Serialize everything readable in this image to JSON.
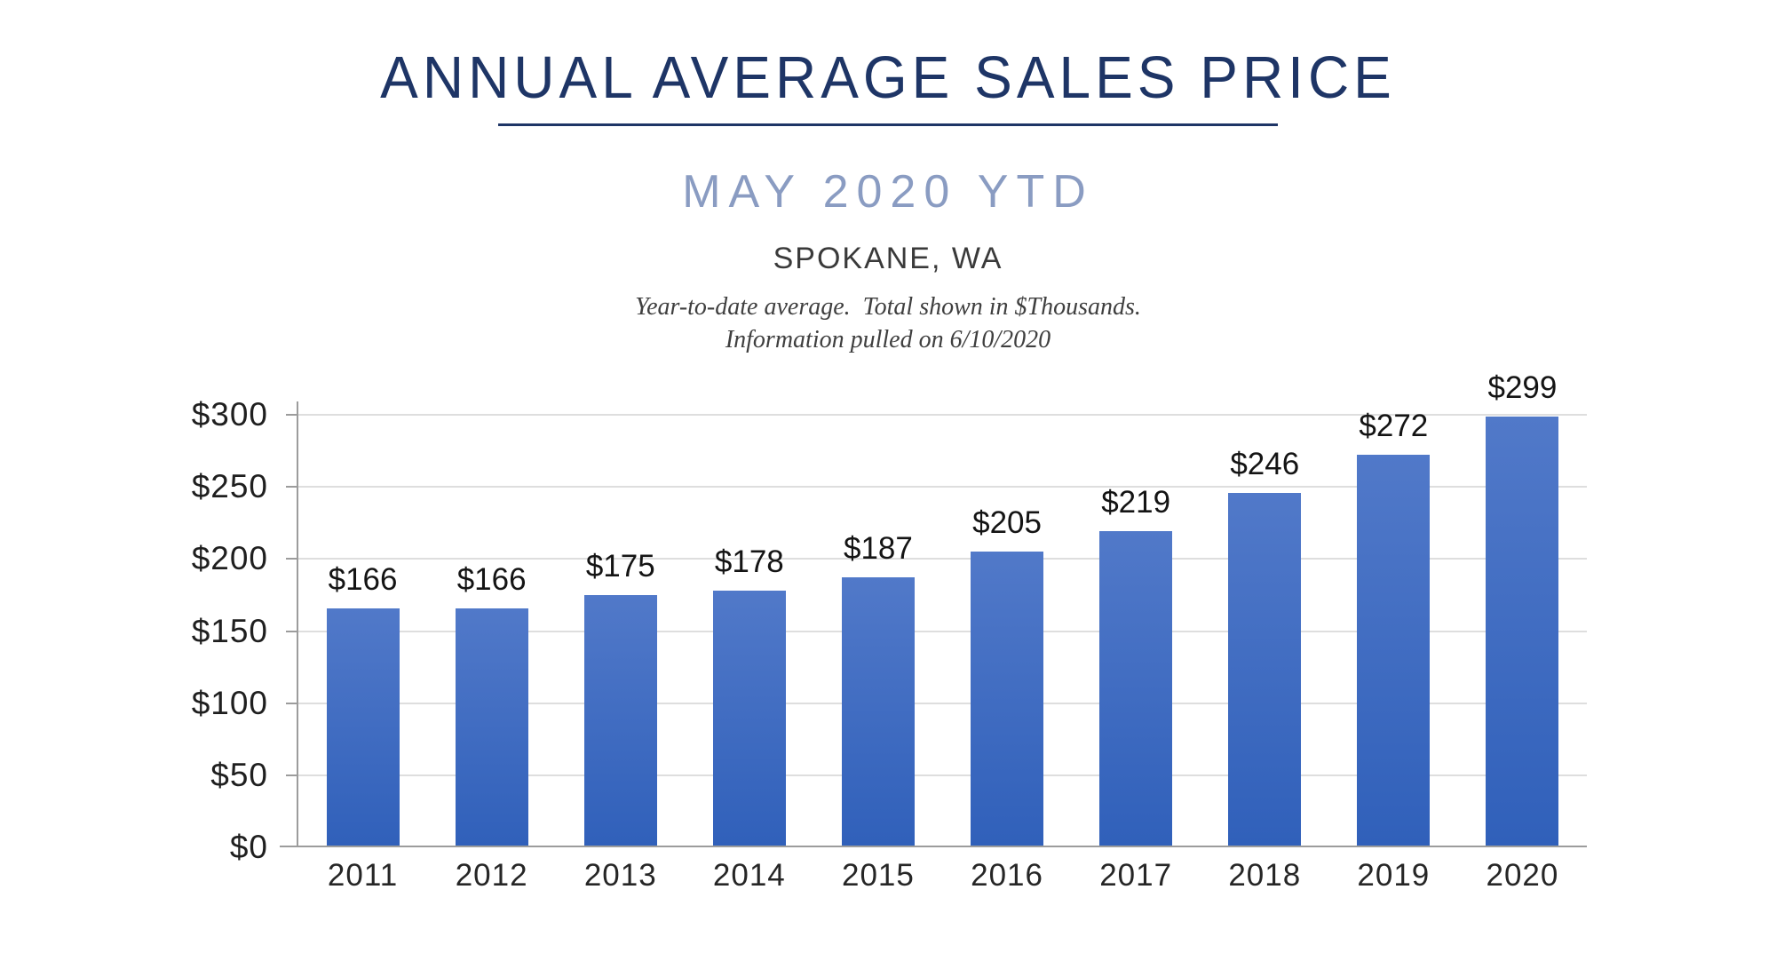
{
  "header": {
    "title": "ANNUAL AVERAGE SALES PRICE",
    "subtitle": "MAY 2020 YTD",
    "location": "SPOKANE, WA",
    "note_line1": "Year-to-date average.  Total shown in $Thousands.",
    "note_line2": "Information pulled on 6/10/2020"
  },
  "colors": {
    "title_navy": "#1e3566",
    "subtitle_blue": "#8a9cc2",
    "bar_gradient_top": "#5179c9",
    "bar_gradient_bottom": "#3060ba",
    "axis_gray": "#9c9c9c",
    "gridline_gray": "#dedede",
    "value_label_black": "#141414"
  },
  "chart_data": {
    "type": "bar",
    "categories": [
      "2011",
      "2012",
      "2013",
      "2014",
      "2015",
      "2016",
      "2017",
      "2018",
      "2019",
      "2020"
    ],
    "values": [
      166,
      166,
      175,
      178,
      187,
      205,
      219,
      246,
      272,
      299
    ],
    "value_labels": [
      "$166",
      "$166",
      "$175",
      "$178",
      "$187",
      "$205",
      "$219",
      "$246",
      "$272",
      "$299"
    ],
    "y_tick_labels": [
      "$0",
      "$50",
      "$100",
      "$150",
      "$200",
      "$250",
      "$300"
    ],
    "y_tick_values": [
      0,
      50,
      100,
      150,
      200,
      250,
      300
    ],
    "ylim": [
      0,
      300
    ],
    "grid": true,
    "legend": "none",
    "units": "$Thousands",
    "title": "ANNUAL AVERAGE SALES PRICE",
    "xlabel": "",
    "ylabel": ""
  }
}
